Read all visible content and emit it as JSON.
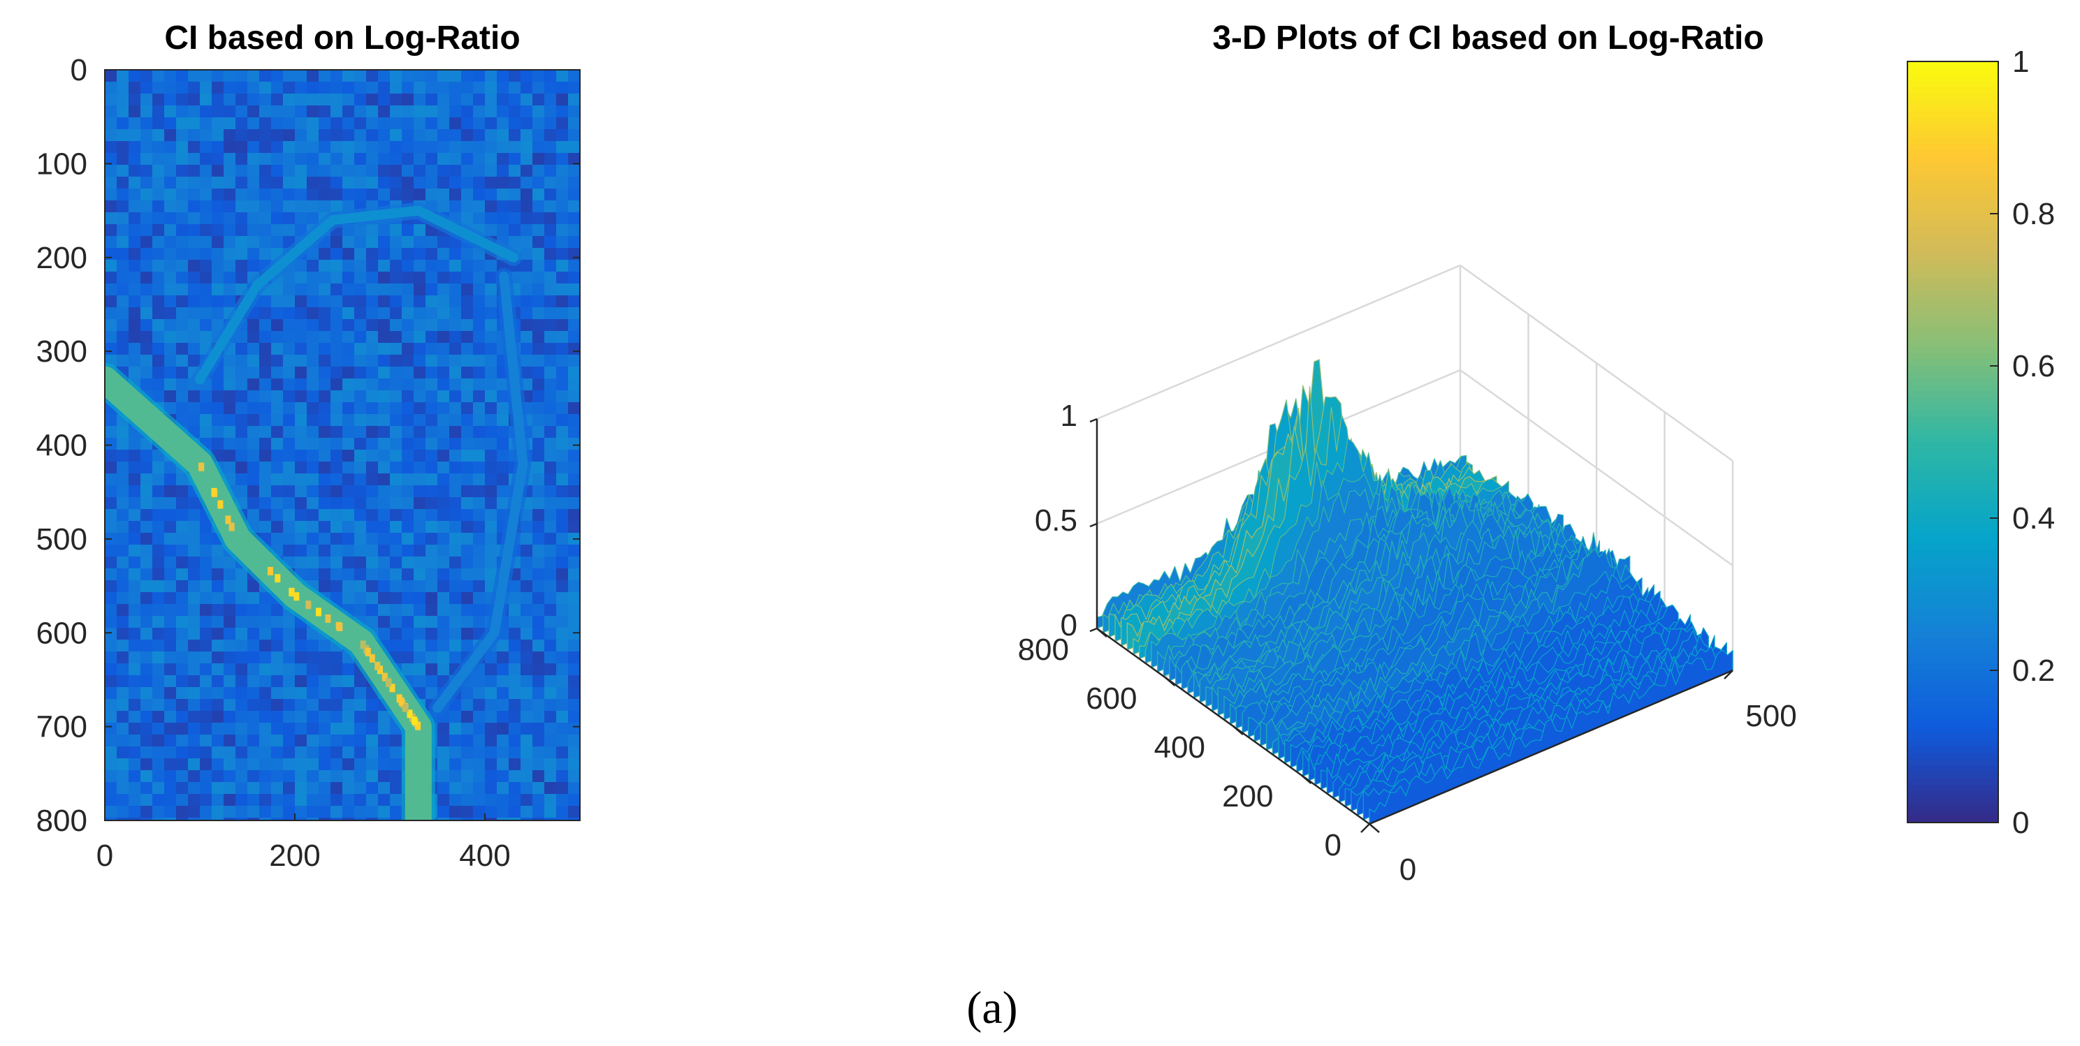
{
  "caption": "(a)",
  "chart_data": [
    {
      "type": "heatmap",
      "title": "CI based on Log-Ratio",
      "xlabel": "",
      "ylabel": "",
      "xlim": [
        0,
        500
      ],
      "ylim": [
        0,
        800
      ],
      "y_direction": "reversed",
      "xticks": [
        0,
        200,
        400
      ],
      "yticks": [
        0,
        100,
        200,
        300,
        400,
        500,
        600,
        700,
        800
      ],
      "value_range": [
        0,
        1
      ],
      "colormap": "parula",
      "background_level": 0.1,
      "features": [
        {
          "name": "bright river channel",
          "points": [
            [
              0,
              330
            ],
            [
              100,
              420
            ],
            [
              140,
              500
            ],
            [
              200,
              560
            ],
            [
              270,
              610
            ],
            [
              310,
              670
            ],
            [
              330,
              700
            ],
            [
              330,
              800
            ]
          ],
          "level": 0.55
        },
        {
          "name": "upper channel",
          "points": [
            [
              100,
              330
            ],
            [
              160,
              230
            ],
            [
              240,
              160
            ],
            [
              330,
              150
            ],
            [
              430,
              200
            ]
          ],
          "level": 0.3
        },
        {
          "name": "right bank",
          "points": [
            [
              420,
              220
            ],
            [
              440,
              420
            ],
            [
              410,
              600
            ],
            [
              350,
              680
            ]
          ],
          "level": 0.25
        }
      ]
    },
    {
      "type": "surface",
      "title": "3-D Plots of CI based on Log-Ratio",
      "xlabel": "",
      "ylabel": "",
      "zlabel": "",
      "xlim": [
        0,
        500
      ],
      "ylim": [
        0,
        800
      ],
      "zlim": [
        0,
        1
      ],
      "xticks": [
        0,
        500
      ],
      "yticks": [
        0,
        200,
        400,
        600,
        800
      ],
      "zticks": [
        0,
        0.5,
        1
      ],
      "zticklabels": [
        "0",
        "0.5",
        "1"
      ],
      "grid": true,
      "peak_value": 1,
      "colormap": "parula"
    }
  ],
  "colorbar": {
    "ticks": [
      0,
      0.2,
      0.4,
      0.6,
      0.8,
      1
    ],
    "ticklabels": [
      "0",
      "0.2",
      "0.4",
      "0.6",
      "0.8",
      "1"
    ],
    "range": [
      0,
      1
    ]
  },
  "colors": {
    "parula": [
      "#352a87",
      "#0f5cdd",
      "#1481d6",
      "#06a4ca",
      "#2eb7a4",
      "#87bf77",
      "#d1bb59",
      "#fec832",
      "#f9fb0e"
    ]
  }
}
